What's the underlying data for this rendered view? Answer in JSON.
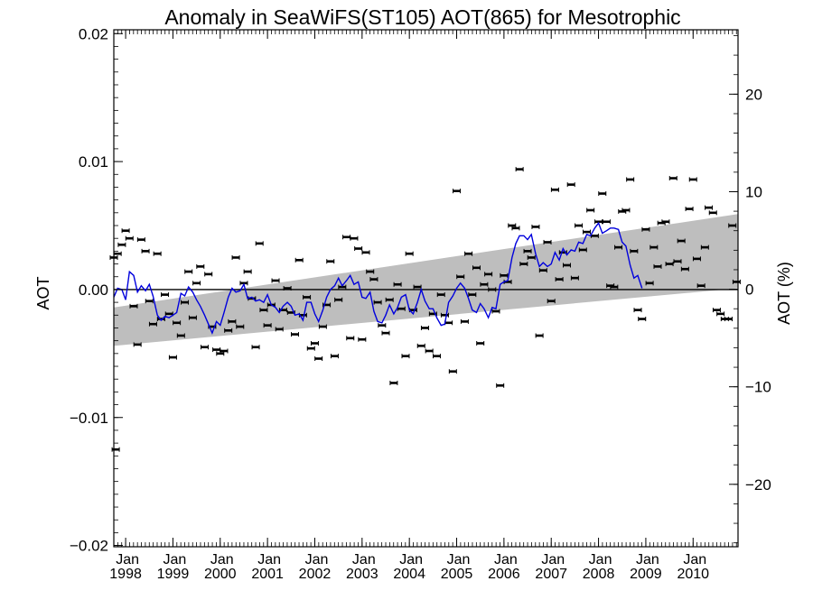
{
  "chart_data": {
    "type": "scatter",
    "title": "Anomaly in SeaWiFS(ST105) AOT(865) for Mesotrophic",
    "ylabel_left": "AOT",
    "ylabel_right": "AOT (%)",
    "xlim": [
      1997.75,
      2010.95
    ],
    "ylim_left": [
      -0.0201,
      0.0203
    ],
    "ylim_right": [
      -26.4,
      26.6
    ],
    "yticks_left": [
      {
        "value": 0.02,
        "label": "0.02"
      },
      {
        "value": 0.01,
        "label": "0.01"
      },
      {
        "value": 0.0,
        "label": "0.00"
      },
      {
        "value": -0.01,
        "label": "−0.01"
      },
      {
        "value": -0.02,
        "label": "−0.02"
      }
    ],
    "yticks_right": [
      {
        "value": 20,
        "label": "20"
      },
      {
        "value": 10,
        "label": "10"
      },
      {
        "value": 0,
        "label": "0"
      },
      {
        "value": -10,
        "label": "−10"
      },
      {
        "value": -20,
        "label": "−20"
      }
    ],
    "xticks": [
      {
        "value": 1998,
        "month": "Jan",
        "year": "1998"
      },
      {
        "value": 1999,
        "month": "Jan",
        "year": "1999"
      },
      {
        "value": 2000,
        "month": "Jan",
        "year": "2000"
      },
      {
        "value": 2001,
        "month": "Jan",
        "year": "2001"
      },
      {
        "value": 2002,
        "month": "Jan",
        "year": "2002"
      },
      {
        "value": 2003,
        "month": "Jan",
        "year": "2003"
      },
      {
        "value": 2004,
        "month": "Jan",
        "year": "2004"
      },
      {
        "value": 2005,
        "month": "Jan",
        "year": "2005"
      },
      {
        "value": 2006,
        "month": "Jan",
        "year": "2006"
      },
      {
        "value": 2007,
        "month": "Jan",
        "year": "2007"
      },
      {
        "value": 2008,
        "month": "Jan",
        "year": "2008"
      },
      {
        "value": 2009,
        "month": "Jan",
        "year": "2009"
      },
      {
        "value": 2010,
        "month": "Jan",
        "year": "2010"
      }
    ],
    "trend_band": {
      "x": [
        1997.75,
        2010.95
      ],
      "upper": [
        -0.0014,
        0.0059
      ],
      "lower": [
        -0.0044,
        0.0001
      ],
      "color": "#bebebe"
    },
    "zero_line": 0.0,
    "points": [
      [
        1997.75,
        0.0025
      ],
      [
        1997.79,
        -0.0125
      ],
      [
        1997.83,
        0.0028
      ],
      [
        1997.92,
        0.0035
      ],
      [
        1998.0,
        0.0046
      ],
      [
        1998.08,
        0.004
      ],
      [
        1998.17,
        -0.0013
      ],
      [
        1998.25,
        -0.0043
      ],
      [
        1998.33,
        0.0039
      ],
      [
        1998.42,
        0.003
      ],
      [
        1998.5,
        -0.0009
      ],
      [
        1998.58,
        -0.0027
      ],
      [
        1998.67,
        0.0028
      ],
      [
        1998.75,
        -0.0023
      ],
      [
        1998.83,
        -0.0004
      ],
      [
        1998.92,
        -0.0019
      ],
      [
        1999.0,
        -0.0053
      ],
      [
        1999.08,
        -0.0026
      ],
      [
        1999.17,
        -0.0036
      ],
      [
        1999.25,
        -0.001
      ],
      [
        1999.33,
        0.0014
      ],
      [
        1999.42,
        -0.0022
      ],
      [
        1999.5,
        0.0005
      ],
      [
        1999.58,
        0.0018
      ],
      [
        1999.67,
        -0.0045
      ],
      [
        1999.75,
        0.0012
      ],
      [
        1999.83,
        -0.0029
      ],
      [
        1999.92,
        -0.0047
      ],
      [
        2000.0,
        -0.005
      ],
      [
        2000.08,
        -0.0048
      ],
      [
        2000.17,
        -0.0032
      ],
      [
        2000.25,
        -0.0025
      ],
      [
        2000.33,
        0.0025
      ],
      [
        2000.42,
        -0.0029
      ],
      [
        2000.5,
        0.0005
      ],
      [
        2000.58,
        0.0014
      ],
      [
        2000.67,
        -0.0007
      ],
      [
        2000.75,
        -0.0045
      ],
      [
        2000.83,
        0.0036
      ],
      [
        2000.92,
        -0.0016
      ],
      [
        2001.0,
        -0.0028
      ],
      [
        2001.08,
        -0.0012
      ],
      [
        2001.17,
        0.0007
      ],
      [
        2001.25,
        -0.0031
      ],
      [
        2001.33,
        -0.0016
      ],
      [
        2001.42,
        0.0001
      ],
      [
        2001.5,
        -0.0018
      ],
      [
        2001.58,
        -0.0035
      ],
      [
        2001.67,
        0.0023
      ],
      [
        2001.75,
        -0.002
      ],
      [
        2001.83,
        -0.0006
      ],
      [
        2001.92,
        -0.0046
      ],
      [
        2002.0,
        -0.0042
      ],
      [
        2002.08,
        -0.0054
      ],
      [
        2002.17,
        -0.0029
      ],
      [
        2002.25,
        -0.0012
      ],
      [
        2002.33,
        0.0022
      ],
      [
        2002.42,
        -0.0052
      ],
      [
        2002.5,
        -0.0008
      ],
      [
        2002.58,
        0.0002
      ],
      [
        2002.67,
        0.0041
      ],
      [
        2002.75,
        -0.0038
      ],
      [
        2002.83,
        0.004
      ],
      [
        2002.92,
        0.0032
      ],
      [
        2003.0,
        -0.0039
      ],
      [
        2003.08,
        0.0029
      ],
      [
        2003.17,
        0.0014
      ],
      [
        2003.25,
        0.0008
      ],
      [
        2003.33,
        -0.001
      ],
      [
        2003.42,
        -0.0028
      ],
      [
        2003.5,
        -0.0034
      ],
      [
        2003.58,
        -0.0008
      ],
      [
        2003.67,
        -0.0073
      ],
      [
        2003.75,
        0.0004
      ],
      [
        2003.83,
        -0.0015
      ],
      [
        2003.92,
        -0.0052
      ],
      [
        2004.0,
        0.0028
      ],
      [
        2004.08,
        -0.0016
      ],
      [
        2004.17,
        0.0002
      ],
      [
        2004.25,
        -0.0044
      ],
      [
        2004.33,
        -0.003
      ],
      [
        2004.42,
        -0.0048
      ],
      [
        2004.5,
        -0.0019
      ],
      [
        2004.58,
        -0.0052
      ],
      [
        2004.67,
        -0.0004
      ],
      [
        2004.75,
        -0.002
      ],
      [
        2004.83,
        -0.0026
      ],
      [
        2004.92,
        -0.0064
      ],
      [
        2005.0,
        0.0077
      ],
      [
        2005.08,
        0.001
      ],
      [
        2005.17,
        -0.0025
      ],
      [
        2005.25,
        0.0028
      ],
      [
        2005.33,
        -0.0004
      ],
      [
        2005.42,
        0.0017
      ],
      [
        2005.5,
        -0.0042
      ],
      [
        2005.58,
        0.0004
      ],
      [
        2005.67,
        0.0012
      ],
      [
        2005.75,
        0.0
      ],
      [
        2005.83,
        -0.0017
      ],
      [
        2005.92,
        -0.0075
      ],
      [
        2006.0,
        0.0011
      ],
      [
        2006.08,
        0.0006
      ],
      [
        2006.17,
        0.005
      ],
      [
        2006.25,
        0.0048
      ],
      [
        2006.33,
        0.0094
      ],
      [
        2006.42,
        0.002
      ],
      [
        2006.5,
        0.003
      ],
      [
        2006.58,
        0.0025
      ],
      [
        2006.67,
        0.0049
      ],
      [
        2006.75,
        -0.0036
      ],
      [
        2006.83,
        0.0015
      ],
      [
        2006.92,
        0.0037
      ],
      [
        2007.0,
        -0.0009
      ],
      [
        2007.08,
        0.0078
      ],
      [
        2007.17,
        0.0008
      ],
      [
        2007.25,
        0.0029
      ],
      [
        2007.33,
        0.0019
      ],
      [
        2007.42,
        0.0082
      ],
      [
        2007.5,
        0.0009
      ],
      [
        2007.58,
        0.005
      ],
      [
        2007.67,
        0.0031
      ],
      [
        2007.75,
        0.0045
      ],
      [
        2007.83,
        0.0062
      ],
      [
        2007.92,
        0.0042
      ],
      [
        2008.0,
        0.0053
      ],
      [
        2008.08,
        0.0075
      ],
      [
        2008.17,
        0.0053
      ],
      [
        2008.25,
        0.0003
      ],
      [
        2008.33,
        0.0002
      ],
      [
        2008.42,
        0.0033
      ],
      [
        2008.5,
        0.0061
      ],
      [
        2008.58,
        0.0062
      ],
      [
        2008.67,
        0.0086
      ],
      [
        2008.75,
        0.003
      ],
      [
        2008.83,
        -0.0016
      ],
      [
        2008.92,
        -0.0023
      ],
      [
        2009.0,
        0.0047
      ],
      [
        2009.08,
        0.0005
      ],
      [
        2009.17,
        0.0033
      ],
      [
        2009.25,
        0.0018
      ],
      [
        2009.33,
        0.0052
      ],
      [
        2009.42,
        0.0053
      ],
      [
        2009.5,
        0.002
      ],
      [
        2009.58,
        0.0087
      ],
      [
        2009.67,
        0.0022
      ],
      [
        2009.75,
        0.0038
      ],
      [
        2009.83,
        0.0016
      ],
      [
        2009.92,
        0.0063
      ],
      [
        2010.0,
        0.0086
      ],
      [
        2010.08,
        0.0024
      ],
      [
        2010.17,
        0.0003
      ],
      [
        2010.25,
        0.0033
      ],
      [
        2010.33,
        0.0064
      ],
      [
        2010.42,
        0.006
      ],
      [
        2010.5,
        -0.0016
      ],
      [
        2010.58,
        -0.0019
      ],
      [
        2010.67,
        -0.0023
      ],
      [
        2010.75,
        -0.0023
      ],
      [
        2010.83,
        0.005
      ],
      [
        2010.92,
        0.0006
      ]
    ],
    "smooth_line": {
      "color": "#0000dd",
      "x": [
        1997.75,
        1997.83,
        1997.92,
        1998.0,
        1998.08,
        1998.17,
        1998.25,
        1998.33,
        1998.42,
        1998.5,
        1998.58,
        1998.67,
        1998.75,
        1998.83,
        1998.92,
        1999.0,
        1999.08,
        1999.17,
        1999.25,
        1999.33,
        1999.42,
        1999.5,
        1999.58,
        1999.67,
        1999.75,
        1999.83,
        1999.92,
        2000.0,
        2000.08,
        2000.17,
        2000.25,
        2000.33,
        2000.42,
        2000.5,
        2000.58,
        2000.67,
        2000.75,
        2000.83,
        2000.92,
        2001.0,
        2001.08,
        2001.17,
        2001.25,
        2001.33,
        2001.42,
        2001.5,
        2001.58,
        2001.67,
        2001.75,
        2001.83,
        2001.92,
        2002.0,
        2002.08,
        2002.17,
        2002.25,
        2002.33,
        2002.42,
        2002.5,
        2002.58,
        2002.67,
        2002.75,
        2002.83,
        2002.92,
        2003.0,
        2003.08,
        2003.17,
        2003.25,
        2003.33,
        2003.42,
        2003.5,
        2003.58,
        2003.67,
        2003.75,
        2003.83,
        2003.92,
        2004.0,
        2004.08,
        2004.17,
        2004.25,
        2004.33,
        2004.42,
        2004.5,
        2004.58,
        2004.67,
        2004.75,
        2004.83,
        2004.92,
        2005.0,
        2005.08,
        2005.17,
        2005.25,
        2005.33,
        2005.42,
        2005.5,
        2005.58,
        2005.67,
        2005.75,
        2005.83,
        2005.92,
        2006.0,
        2006.08,
        2006.17,
        2006.25,
        2006.33,
        2006.42,
        2006.5,
        2006.58,
        2006.67,
        2006.75,
        2006.83,
        2006.92,
        2007.0,
        2007.08,
        2007.17,
        2007.25,
        2007.33,
        2007.42,
        2007.5,
        2007.58,
        2007.67,
        2007.75,
        2007.83,
        2007.92,
        2008.0,
        2008.08,
        2008.17,
        2008.25,
        2008.33,
        2008.42,
        2008.5,
        2008.58,
        2008.67,
        2008.75,
        2008.83,
        2008.92
      ],
      "y": [
        -0.0006,
        0.0001,
        0.0,
        -0.0008,
        0.0014,
        0.0011,
        -0.0002,
        0.0003,
        -0.0001,
        0.0004,
        -0.0005,
        -0.002,
        -0.0024,
        -0.0021,
        -0.0022,
        -0.002,
        -0.0018,
        -0.0003,
        -0.0005,
        0.0002,
        -0.0002,
        -0.0008,
        -0.0013,
        -0.002,
        -0.0027,
        -0.0034,
        -0.0025,
        -0.0028,
        -0.0018,
        -0.0006,
        0.0001,
        -0.0002,
        -0.0001,
        0.0004,
        -0.0007,
        -0.0006,
        -0.0009,
        -0.0008,
        -0.001,
        -0.0004,
        -0.0012,
        -0.0014,
        -0.0018,
        -0.0013,
        -0.001,
        -0.0013,
        -0.002,
        -0.0019,
        -0.0024,
        -0.001,
        -0.001,
        -0.0019,
        -0.0025,
        -0.0016,
        -0.0006,
        0.0,
        0.0003,
        0.0009,
        0.0003,
        0.0007,
        0.0011,
        0.0004,
        0.0006,
        -0.0006,
        -0.0007,
        -0.0002,
        -0.0017,
        -0.0025,
        -0.0026,
        -0.002,
        -0.0012,
        -0.0019,
        -0.0014,
        -0.0006,
        -0.0004,
        -0.0016,
        -0.0019,
        -0.001,
        0.0,
        -0.0009,
        -0.0015,
        -0.0015,
        -0.0022,
        -0.0028,
        -0.0027,
        -0.001,
        -0.0005,
        0.0001,
        0.0005,
        0.0001,
        -0.0007,
        -0.0016,
        -0.0018,
        -0.0011,
        -0.0015,
        -0.0022,
        -0.0014,
        -0.0015,
        0.0004,
        0.0006,
        0.0007,
        0.0025,
        0.0036,
        0.0042,
        0.0042,
        0.0039,
        0.0043,
        0.0028,
        0.0018,
        0.0021,
        0.0018,
        0.002,
        0.0029,
        0.0023,
        0.0032,
        0.0027,
        0.0031,
        0.003,
        0.0037,
        0.0036,
        0.0043,
        0.0042,
        0.0048,
        0.0052,
        0.0044,
        0.0046,
        0.0048,
        0.0048,
        0.0047,
        0.0037,
        0.0034,
        0.0019,
        0.0009,
        0.0011,
        0.0001
      ]
    }
  }
}
